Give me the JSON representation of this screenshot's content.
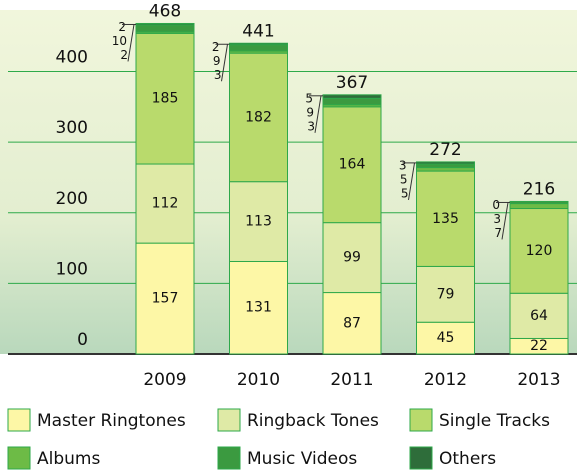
{
  "chart_data": {
    "type": "stacked_bar",
    "categories": [
      "2009",
      "2010",
      "2011",
      "2012",
      "2013"
    ],
    "series": [
      {
        "name": "Master Ringtones",
        "color": "#fdf7a6",
        "values": [
          157,
          131,
          87,
          45,
          22
        ]
      },
      {
        "name": "Ringback Tones",
        "color": "#dfeaa6",
        "values": [
          112,
          113,
          99,
          79,
          64
        ]
      },
      {
        "name": "Single Tracks",
        "color": "#b9da6c",
        "values": [
          185,
          182,
          164,
          135,
          120
        ]
      },
      {
        "name": "Albums",
        "color": "#6dbb46",
        "values": [
          2,
          3,
          3,
          5,
          7
        ]
      },
      {
        "name": "Music Videos",
        "color": "#3b9a40",
        "values": [
          10,
          9,
          9,
          5,
          3
        ]
      },
      {
        "name": "Others",
        "color": "#2e6d3a",
        "values": [
          2,
          2,
          5,
          3,
          0
        ]
      }
    ],
    "totals": [
      468,
      441,
      367,
      272,
      216
    ],
    "ylim": [
      0,
      480
    ],
    "yticks": [
      0,
      100,
      200,
      300,
      400
    ],
    "grid": true
  }
}
